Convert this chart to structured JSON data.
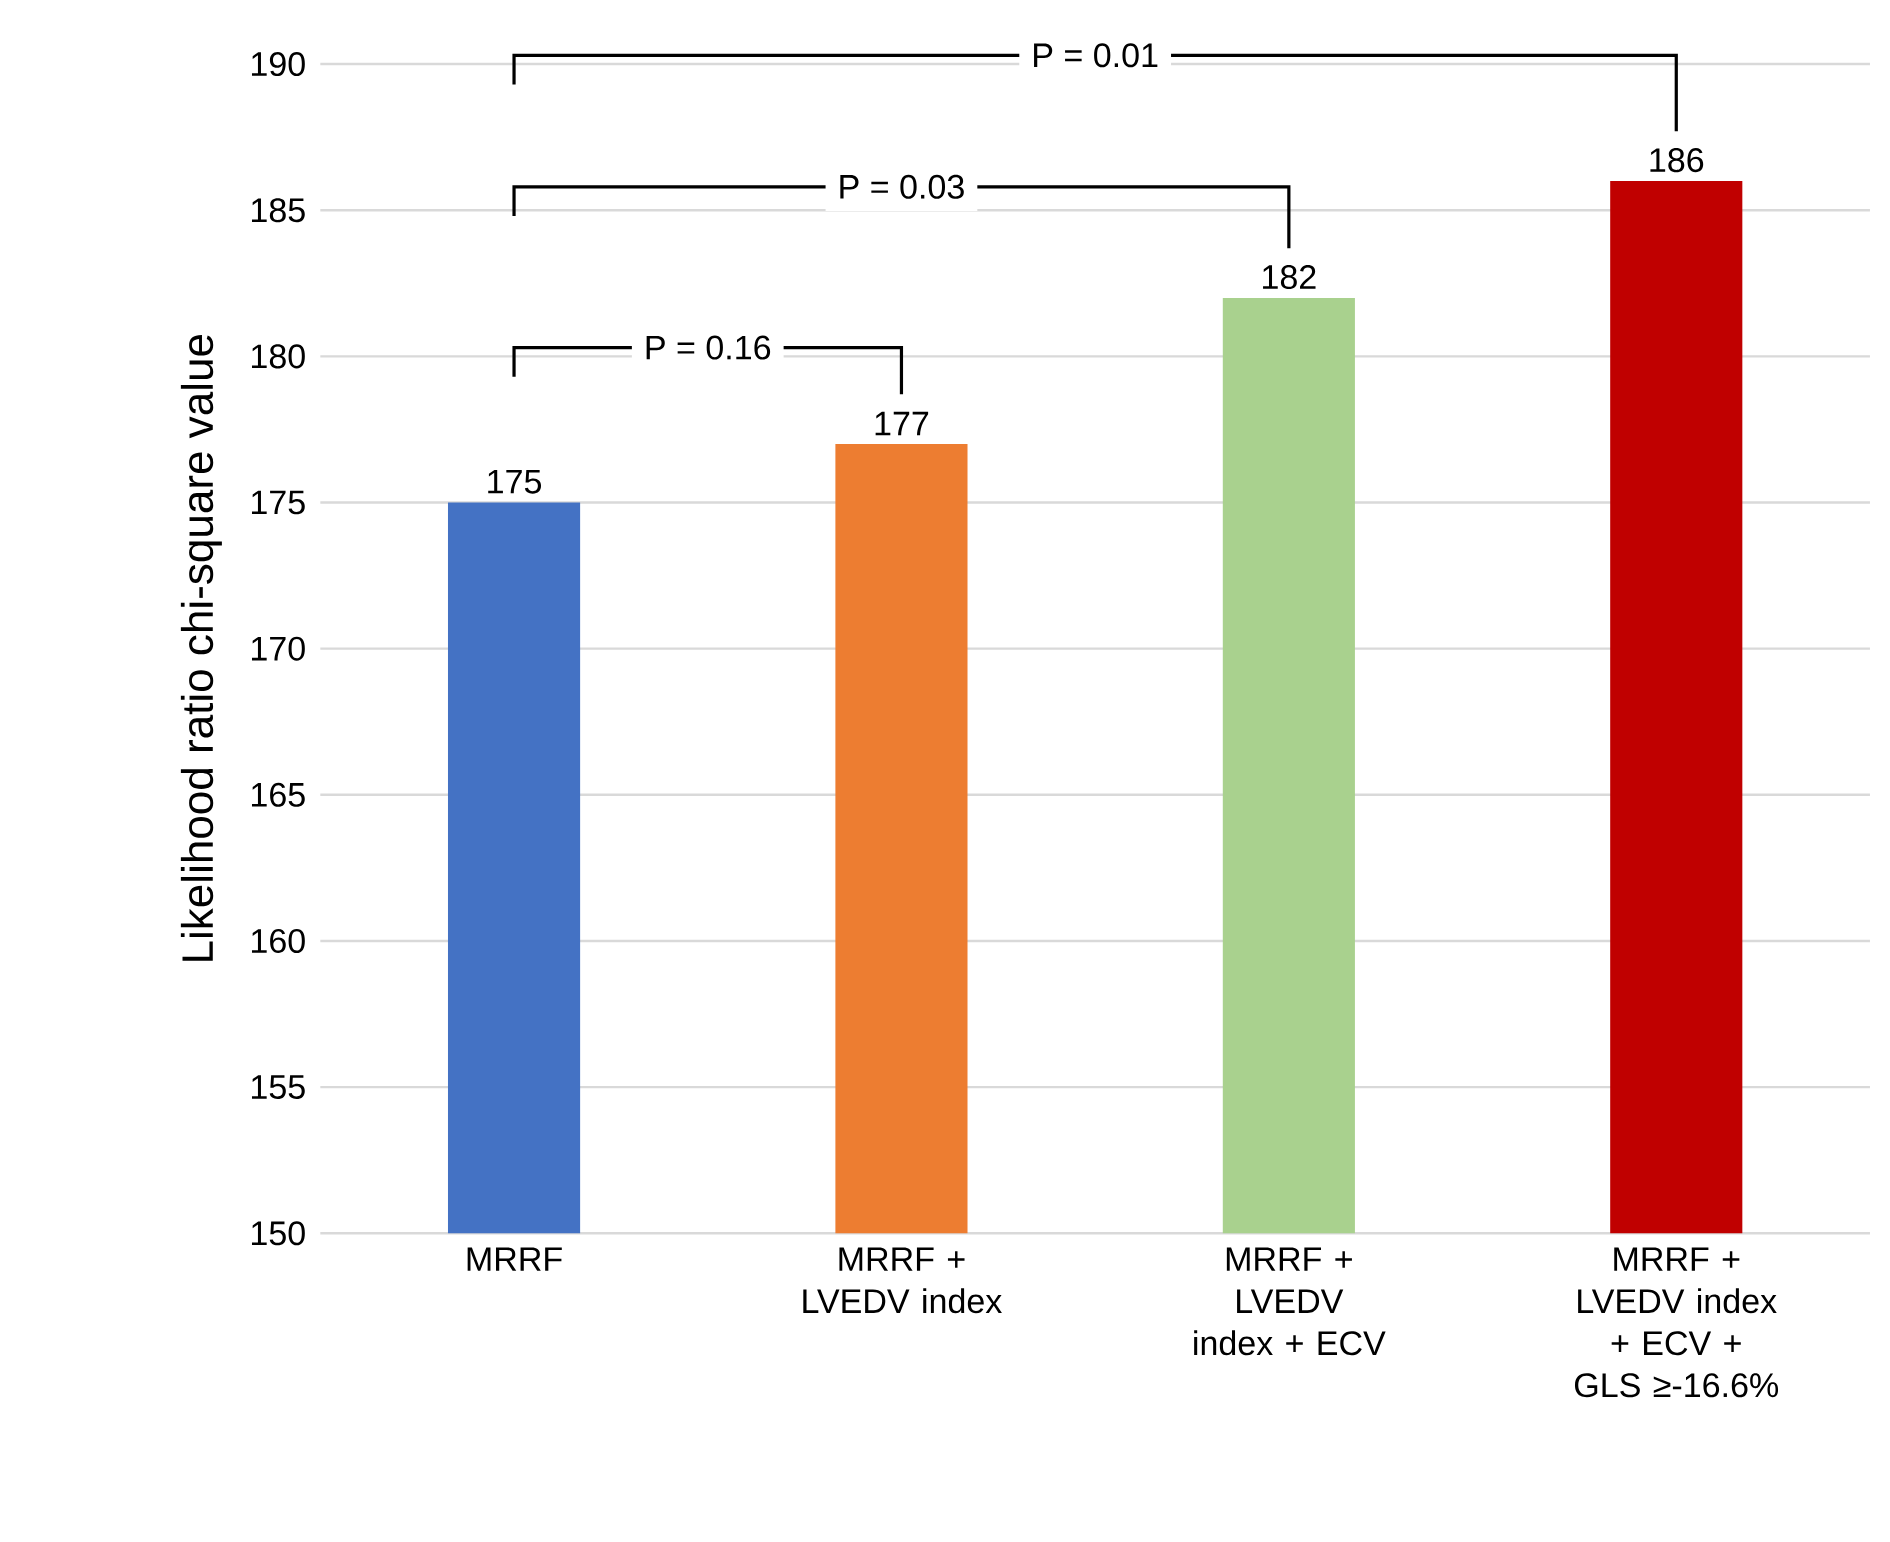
{
  "chart_data": {
    "type": "bar",
    "ylabel": "Likelihood ratio chi-square value",
    "categories": [
      "MRRF",
      "MRRF + LVEDV index",
      "MRRF + LVEDV index + ECV",
      "MRRF + LVEDV index + ECV + GLS ≥-16.6%"
    ],
    "values": [
      175,
      177,
      182,
      186
    ],
    "colors": [
      "#4472c4",
      "#ed7d31",
      "#a9d18e",
      "#c00000"
    ],
    "ylim": [
      150,
      190
    ],
    "yticks": [
      150,
      155,
      160,
      165,
      170,
      175,
      180,
      185,
      190
    ],
    "grid": "y",
    "data_labels": true,
    "annotations": [
      "P = 0.16",
      "P = 0.03",
      "P = 0.01"
    ]
  }
}
